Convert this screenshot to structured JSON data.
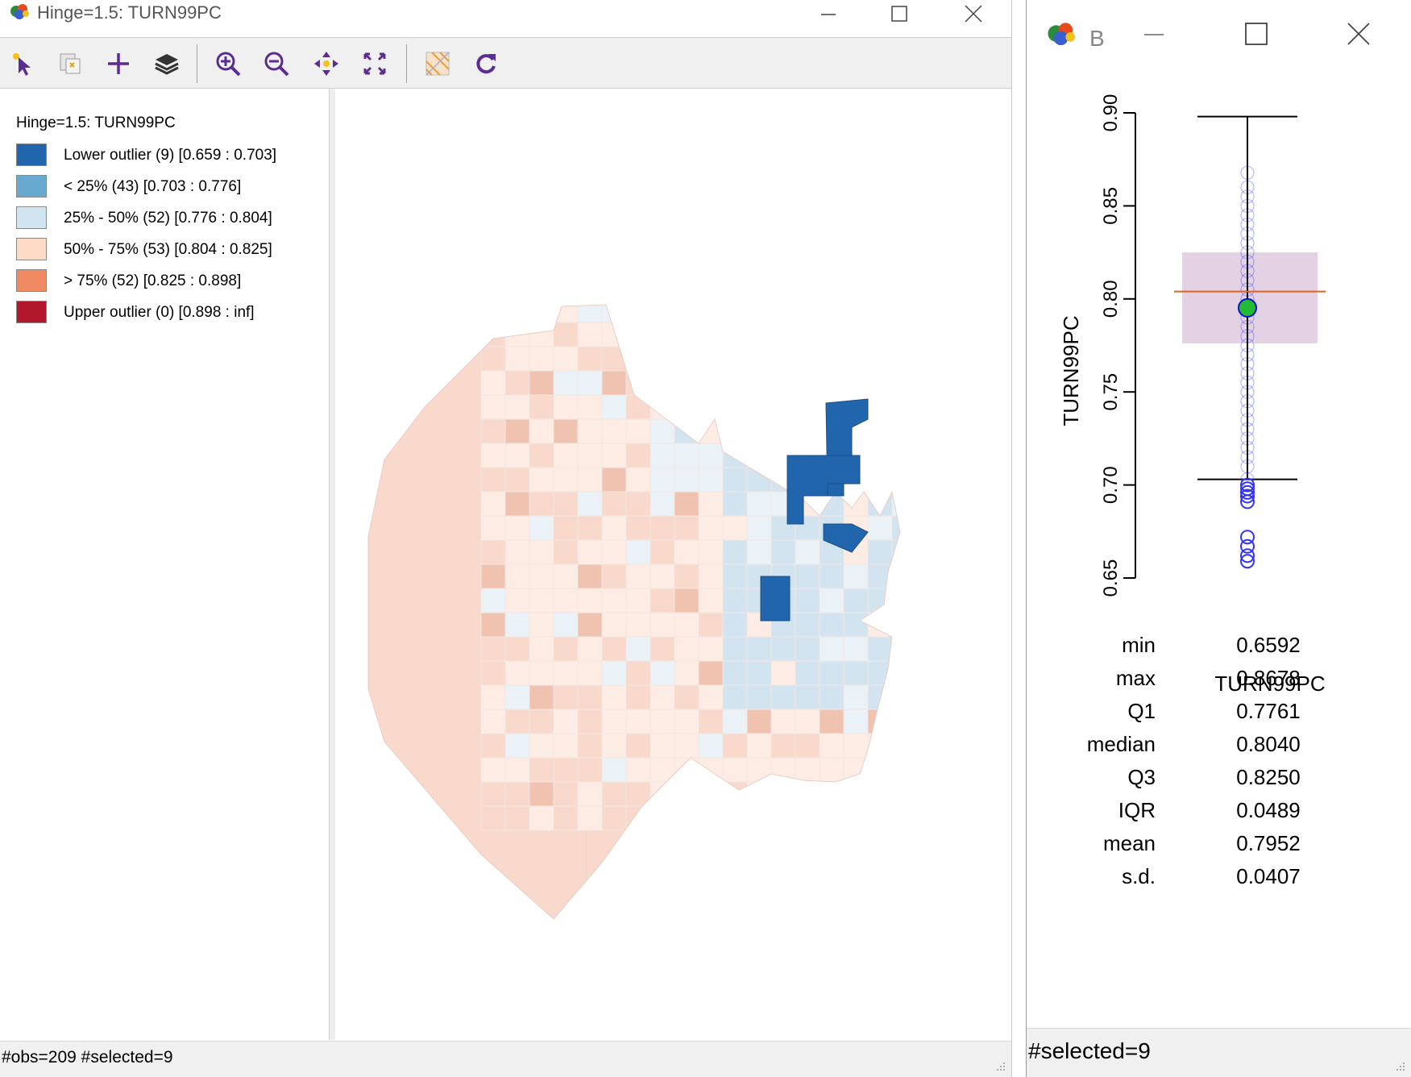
{
  "map_window": {
    "title": "Hinge=1.5: TURN99PC",
    "toolbar": {
      "select_tool": "select-arrow-icon",
      "selection_copy": "copy-selection-icon",
      "add": "plus-icon",
      "layers": "layers-icon",
      "zoom_in": "zoom-in-icon",
      "zoom_out": "zoom-out-icon",
      "pan": "pan-icon",
      "fit": "fit-extent-icon",
      "basemap": "basemap-icon",
      "refresh": "refresh-icon"
    },
    "legend": {
      "title": "Hinge=1.5: TURN99PC",
      "items": [
        {
          "label": "Lower outlier (9)  [0.659 : 0.703]",
          "color": "#2166ac"
        },
        {
          "label": "< 25% (43)  [0.703 : 0.776]",
          "color": "#67a9cf"
        },
        {
          "label": "25% - 50% (52)  [0.776 : 0.804]",
          "color": "#d1e5f0"
        },
        {
          "label": "50% - 75% (53)  [0.804 : 0.825]",
          "color": "#fddbc7"
        },
        {
          "label": "> 75% (52)  [0.825 : 0.898]",
          "color": "#ef8a62"
        },
        {
          "label": "Upper outlier (0)  [0.898 : inf]",
          "color": "#b2182b"
        }
      ]
    },
    "map_colors": {
      "very_light_red": "#fdece4",
      "light_red": "#f8d9cc",
      "salmon": "#f0c2b0",
      "light_blue": "#d2e4f0",
      "very_light_blue": "#eaf2f8",
      "outlier_blue": "#2166ac"
    },
    "status": "#obs=209 #selected=9"
  },
  "box_window": {
    "title": "B",
    "status": "#selected=9",
    "plot": {
      "ylabel": "TURN99PC",
      "xlabel": "TURN99PC",
      "ticks": [
        "0.65",
        "0.70",
        "0.75",
        "0.80",
        "0.85",
        "0.90"
      ],
      "colors": {
        "box_fill": "#e0cde0",
        "median_line": "#e8601c",
        "mean_point": "#22bb33",
        "points": "#3333ff"
      }
    },
    "stats": [
      {
        "label": "min",
        "value": "0.6592"
      },
      {
        "label": "max",
        "value": "0.8678"
      },
      {
        "label": "Q1",
        "value": "0.7761"
      },
      {
        "label": "median",
        "value": "0.8040"
      },
      {
        "label": "Q3",
        "value": "0.8250"
      },
      {
        "label": "IQR",
        "value": "0.0489"
      },
      {
        "label": "mean",
        "value": "0.7952"
      },
      {
        "label": "s.d.",
        "value": "0.0407"
      }
    ]
  },
  "chart_data": {
    "type": "box",
    "variable": "TURN99PC",
    "ylim": [
      0.65,
      0.9
    ],
    "ticks": [
      0.65,
      0.7,
      0.75,
      0.8,
      0.85,
      0.9
    ],
    "min": 0.6592,
    "max": 0.8678,
    "q1": 0.7761,
    "median": 0.804,
    "q3": 0.825,
    "iqr": 0.0489,
    "mean": 0.7952,
    "sd": 0.0407,
    "hinge": 1.5,
    "lower_fence": 0.703,
    "upper_fence": 0.898,
    "lower_outliers": [
      0.659,
      0.662,
      0.667,
      0.672,
      0.691,
      0.694,
      0.696,
      0.698,
      0.7
    ],
    "points": [
      0.703,
      0.71,
      0.715,
      0.72,
      0.725,
      0.73,
      0.735,
      0.74,
      0.745,
      0.75,
      0.755,
      0.76,
      0.765,
      0.77,
      0.775,
      0.78,
      0.785,
      0.79,
      0.795,
      0.8,
      0.805,
      0.81,
      0.815,
      0.82,
      0.825,
      0.83,
      0.835,
      0.84,
      0.845,
      0.85,
      0.855,
      0.86,
      0.8678
    ]
  }
}
